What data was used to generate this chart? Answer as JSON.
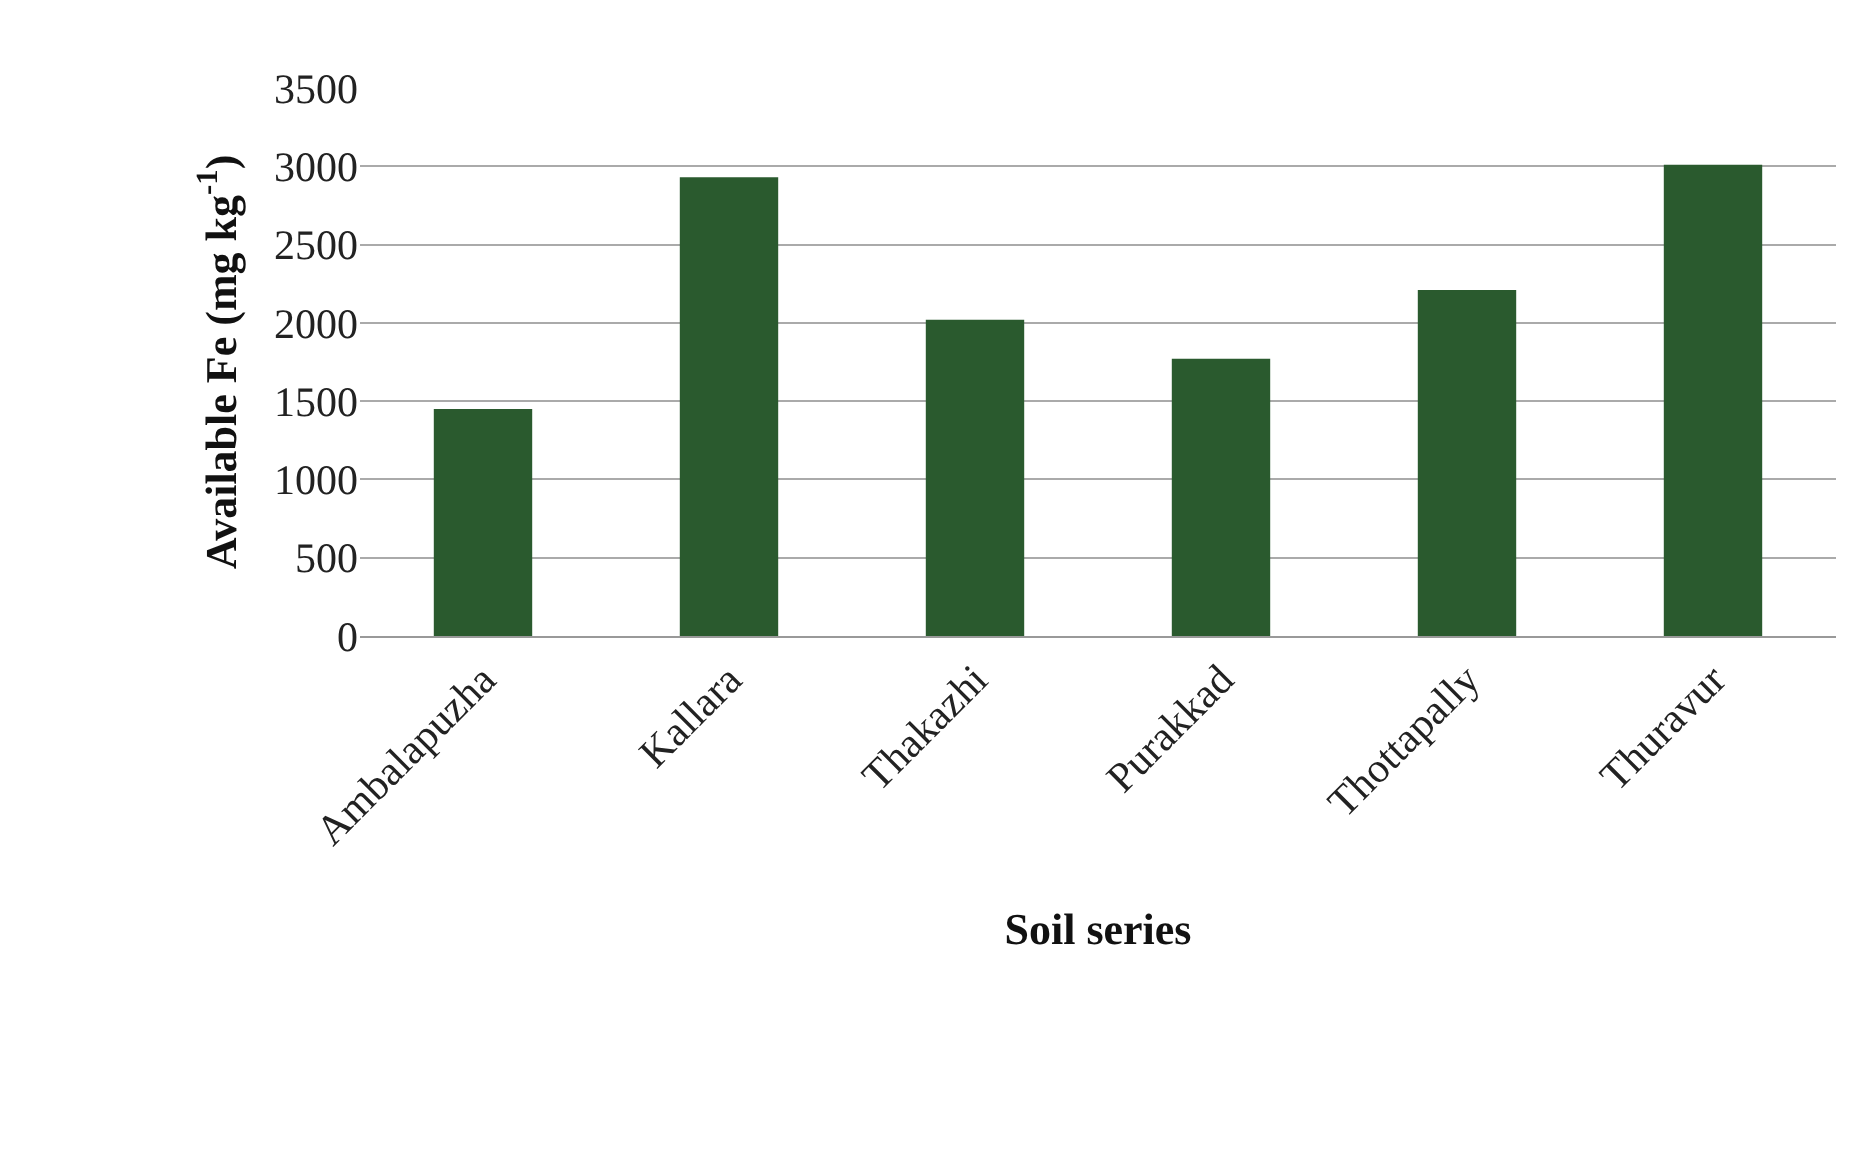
{
  "chart_data": {
    "type": "bar",
    "xlabel": "Soil series",
    "ylabel": "Available Fe (mg kg$^{-1}$)",
    "categories": [
      "Ambalapuzha",
      "Kallara",
      "Thakazhi",
      "Purakkad",
      "Thottapally",
      "Thuravur"
    ],
    "values": [
      1450,
      2930,
      2020,
      1770,
      2210,
      3010
    ],
    "color": "#2a5a2e",
    "ylim": [
      0,
      3500
    ],
    "yticks": [
      0,
      500,
      1000,
      1500,
      2000,
      2500,
      3000,
      3500
    ],
    "grid": "y",
    "legend": false
  }
}
